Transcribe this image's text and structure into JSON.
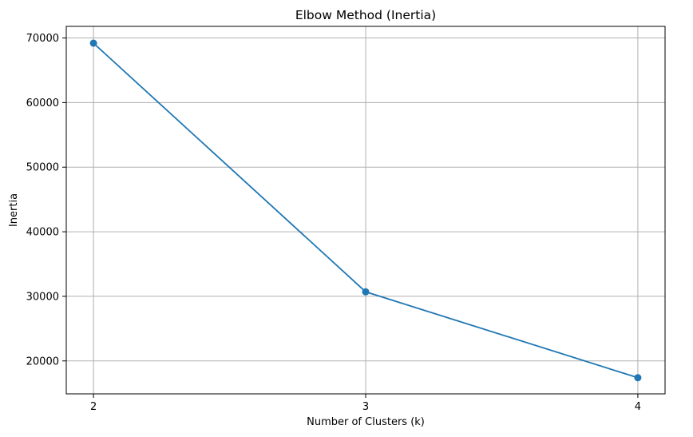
{
  "chart_data": {
    "type": "line",
    "title": "Elbow Method (Inertia)",
    "xlabel": "Number of Clusters (k)",
    "ylabel": "Inertia",
    "x": [
      2,
      3,
      4
    ],
    "xticks": [
      "2",
      "3",
      "4"
    ],
    "yticks": [
      "20000",
      "30000",
      "40000",
      "50000",
      "60000",
      "70000"
    ],
    "ytick_values": [
      20000,
      30000,
      40000,
      50000,
      60000,
      70000
    ],
    "ylim": [
      14900,
      71800
    ],
    "xlim": [
      1.9,
      4.1
    ],
    "grid": true,
    "series": [
      {
        "values": [
          69200,
          30700,
          17400
        ],
        "color": "#1f77b4",
        "marker": "circle"
      }
    ]
  }
}
